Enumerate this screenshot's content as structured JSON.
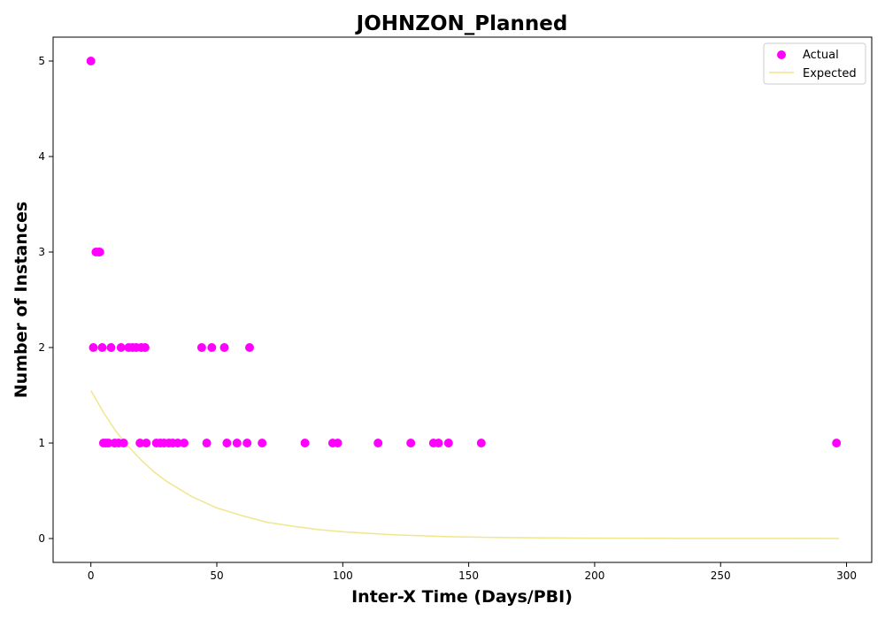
{
  "chart_data": {
    "type": "scatter",
    "title": "JOHNZON_Planned",
    "xlabel": "Inter-X Time (Days/PBI)",
    "ylabel": "Number of Instances",
    "xlim": [
      -15,
      310
    ],
    "ylim": [
      -0.25,
      5.25
    ],
    "x_ticks": [
      0,
      50,
      100,
      150,
      200,
      250,
      300
    ],
    "y_ticks": [
      0,
      1,
      2,
      3,
      4,
      5
    ],
    "grid": false,
    "legend": "top-right",
    "series": [
      {
        "name": "Actual",
        "kind": "scatter",
        "color": "#ff00ff",
        "points": [
          [
            0,
            5
          ],
          [
            2,
            3
          ],
          [
            3,
            3
          ],
          [
            3.5,
            3
          ],
          [
            1,
            2
          ],
          [
            4.5,
            2
          ],
          [
            8,
            2
          ],
          [
            12,
            2
          ],
          [
            15,
            2
          ],
          [
            16.5,
            2
          ],
          [
            18,
            2
          ],
          [
            20,
            2
          ],
          [
            21.5,
            2
          ],
          [
            44,
            2
          ],
          [
            48,
            2
          ],
          [
            53,
            2
          ],
          [
            63,
            2
          ],
          [
            5,
            1
          ],
          [
            6,
            1
          ],
          [
            7,
            1
          ],
          [
            9.5,
            1
          ],
          [
            11,
            1
          ],
          [
            13,
            1
          ],
          [
            19.5,
            1
          ],
          [
            22,
            1
          ],
          [
            26,
            1
          ],
          [
            27.5,
            1
          ],
          [
            29,
            1
          ],
          [
            31,
            1
          ],
          [
            32.5,
            1
          ],
          [
            34.5,
            1
          ],
          [
            37,
            1
          ],
          [
            46,
            1
          ],
          [
            54,
            1
          ],
          [
            58,
            1
          ],
          [
            62,
            1
          ],
          [
            68,
            1
          ],
          [
            85,
            1
          ],
          [
            96,
            1
          ],
          [
            98,
            1
          ],
          [
            114,
            1
          ],
          [
            127,
            1
          ],
          [
            136,
            1
          ],
          [
            138,
            1
          ],
          [
            142,
            1
          ],
          [
            155,
            1
          ],
          [
            296,
            1
          ]
        ]
      },
      {
        "name": "Expected",
        "kind": "line",
        "color": "#f0e68c",
        "points": [
          [
            0,
            1.55
          ],
          [
            5,
            1.32
          ],
          [
            10,
            1.12
          ],
          [
            15,
            0.96
          ],
          [
            20,
            0.82
          ],
          [
            25,
            0.7
          ],
          [
            30,
            0.6
          ],
          [
            40,
            0.44
          ],
          [
            50,
            0.32
          ],
          [
            60,
            0.24
          ],
          [
            70,
            0.17
          ],
          [
            80,
            0.13
          ],
          [
            90,
            0.095
          ],
          [
            100,
            0.07
          ],
          [
            120,
            0.04
          ],
          [
            140,
            0.02
          ],
          [
            160,
            0.012
          ],
          [
            180,
            0.007
          ],
          [
            200,
            0.004
          ],
          [
            225,
            0.002
          ],
          [
            250,
            0.001
          ],
          [
            275,
            0.0005
          ],
          [
            297,
            0.0002
          ]
        ]
      }
    ]
  }
}
